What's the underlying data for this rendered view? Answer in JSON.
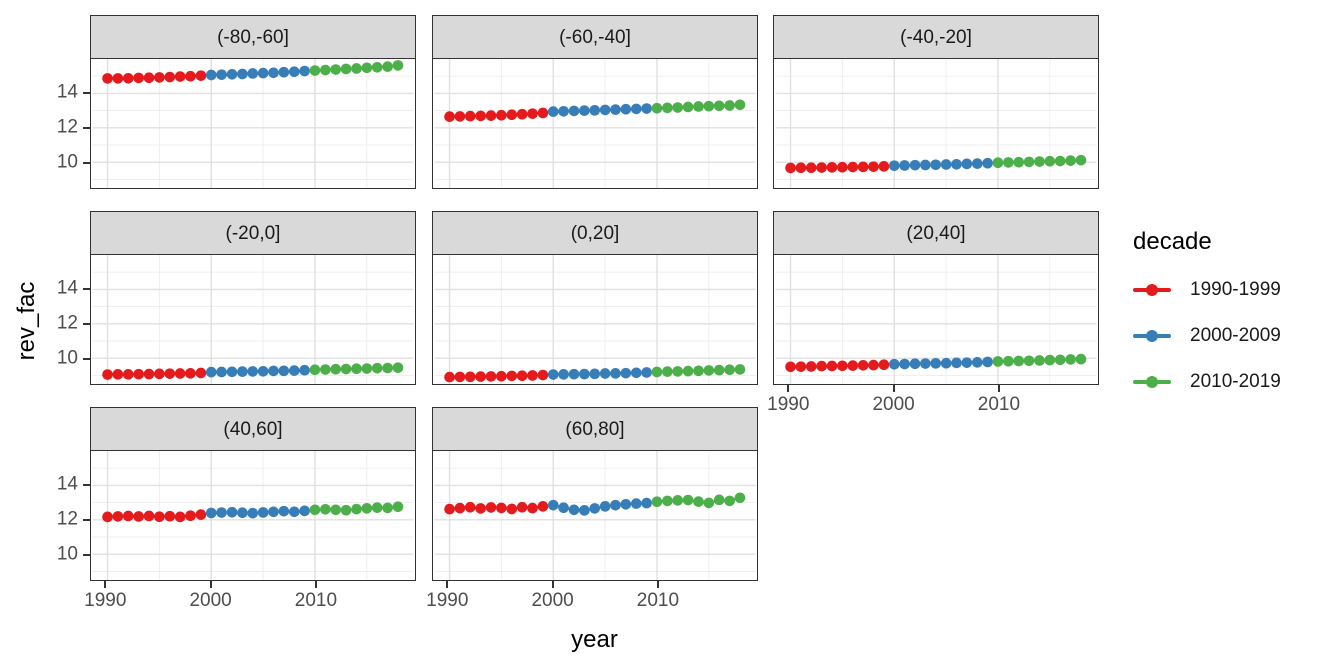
{
  "figure": {
    "xlabel": "year",
    "ylabel": "rev_fac",
    "legend_title": "decade"
  },
  "colors": {
    "decade_1990": "#E41A1C",
    "decade_2000": "#377EB8",
    "decade_2010": "#4DAF4A",
    "strip_background": "#D9D9D9",
    "panel_border": "#333333",
    "grid_major": "#E0E0E0",
    "grid_minor": "#EDEDED",
    "tick_text": "#4D4D4D"
  },
  "chart_data": {
    "type": "scatter",
    "title": "",
    "xlabel": "year",
    "ylabel": "rev_fac",
    "legend_title": "decade",
    "legend_position": "right",
    "grid": true,
    "x": [
      1990,
      1991,
      1992,
      1993,
      1994,
      1995,
      1996,
      1997,
      1998,
      1999,
      2000,
      2001,
      2002,
      2003,
      2004,
      2005,
      2006,
      2007,
      2008,
      2009,
      2010,
      2011,
      2012,
      2013,
      2014,
      2015,
      2016,
      2017,
      2018
    ],
    "x_ticks": [
      1990,
      2000,
      2010
    ],
    "y_ticks": [
      10,
      12,
      14
    ],
    "x_minor_ticks": [
      1995,
      2005,
      2015
    ],
    "y_minor_ticks": [
      9,
      11,
      13,
      15
    ],
    "x_range": [
      1988.55,
      2019.5
    ],
    "y_range": [
      8.5,
      16.0
    ],
    "series_legend": [
      {
        "name": "1990-1999",
        "color": "#E41A1C"
      },
      {
        "name": "2000-2009",
        "color": "#377EB8"
      },
      {
        "name": "2010-2019",
        "color": "#4DAF4A"
      }
    ],
    "decade_index_ranges": [
      [
        0,
        9
      ],
      [
        10,
        19
      ],
      [
        20,
        28
      ]
    ],
    "facets": [
      {
        "label": "(-80,-60]",
        "values": [
          14.87,
          14.87,
          14.88,
          14.9,
          14.91,
          14.93,
          14.95,
          14.98,
          15.0,
          15.03,
          15.07,
          15.09,
          15.11,
          15.13,
          15.16,
          15.18,
          15.2,
          15.23,
          15.26,
          15.3,
          15.33,
          15.36,
          15.39,
          15.42,
          15.45,
          15.49,
          15.52,
          15.56,
          15.63
        ]
      },
      {
        "label": "(-60,-40]",
        "values": [
          12.65,
          12.66,
          12.68,
          12.69,
          12.71,
          12.73,
          12.76,
          12.79,
          12.82,
          12.86,
          12.94,
          12.96,
          12.98,
          13.0,
          13.02,
          13.04,
          13.06,
          13.08,
          13.1,
          13.12,
          13.14,
          13.16,
          13.18,
          13.21,
          13.24,
          13.26,
          13.28,
          13.3,
          13.34
        ]
      },
      {
        "label": "(-40,-20]",
        "values": [
          9.67,
          9.68,
          9.68,
          9.69,
          9.7,
          9.71,
          9.72,
          9.73,
          9.74,
          9.76,
          9.8,
          9.81,
          9.83,
          9.84,
          9.85,
          9.87,
          9.88,
          9.9,
          9.92,
          9.94,
          9.97,
          9.99,
          10.0,
          10.02,
          10.04,
          10.06,
          10.07,
          10.09,
          10.12
        ]
      },
      {
        "label": "(-20,0]",
        "values": [
          9.05,
          9.06,
          9.06,
          9.07,
          9.08,
          9.09,
          9.1,
          9.11,
          9.12,
          9.14,
          9.19,
          9.2,
          9.21,
          9.22,
          9.23,
          9.24,
          9.26,
          9.27,
          9.28,
          9.3,
          9.33,
          9.34,
          9.36,
          9.37,
          9.39,
          9.4,
          9.42,
          9.43,
          9.45
        ]
      },
      {
        "label": "(0,20]",
        "values": [
          8.9,
          8.91,
          8.92,
          8.93,
          8.94,
          8.95,
          8.97,
          8.98,
          9.0,
          9.02,
          9.05,
          9.06,
          9.07,
          9.08,
          9.09,
          9.11,
          9.12,
          9.13,
          9.15,
          9.17,
          9.2,
          9.22,
          9.23,
          9.25,
          9.27,
          9.29,
          9.31,
          9.33,
          9.35
        ]
      },
      {
        "label": "(20,40]",
        "values": [
          9.5,
          9.51,
          9.52,
          9.54,
          9.55,
          9.56,
          9.57,
          9.59,
          9.6,
          9.62,
          9.65,
          9.66,
          9.68,
          9.69,
          9.7,
          9.71,
          9.73,
          9.74,
          9.76,
          9.78,
          9.81,
          9.82,
          9.84,
          9.85,
          9.87,
          9.89,
          9.91,
          9.93,
          9.95
        ]
      },
      {
        "label": "(40,60]",
        "values": [
          12.17,
          12.2,
          12.22,
          12.19,
          12.22,
          12.18,
          12.21,
          12.17,
          12.24,
          12.3,
          12.4,
          12.42,
          12.44,
          12.41,
          12.39,
          12.43,
          12.47,
          12.5,
          12.47,
          12.52,
          12.58,
          12.61,
          12.58,
          12.56,
          12.62,
          12.67,
          12.71,
          12.69,
          12.76
        ]
      },
      {
        "label": "(60,80]",
        "values": [
          12.62,
          12.68,
          12.73,
          12.66,
          12.72,
          12.69,
          12.63,
          12.73,
          12.68,
          12.78,
          12.85,
          12.7,
          12.58,
          12.55,
          12.66,
          12.78,
          12.85,
          12.9,
          12.94,
          12.97,
          13.05,
          13.1,
          13.13,
          13.15,
          13.06,
          12.98,
          13.16,
          13.1,
          13.28
        ]
      }
    ]
  }
}
